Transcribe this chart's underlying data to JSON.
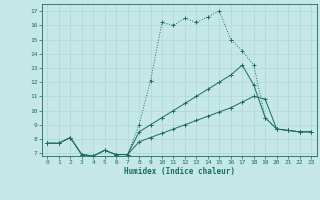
{
  "xlabel": "Humidex (Indice chaleur)",
  "xlim": [
    -0.5,
    23.5
  ],
  "ylim": [
    6.8,
    17.5
  ],
  "xticks": [
    0,
    1,
    2,
    3,
    4,
    5,
    6,
    7,
    8,
    9,
    10,
    11,
    12,
    13,
    14,
    15,
    16,
    17,
    18,
    19,
    20,
    21,
    22,
    23
  ],
  "yticks": [
    7,
    8,
    9,
    10,
    11,
    12,
    13,
    14,
    15,
    16,
    17
  ],
  "bg_color": "#c5e8e6",
  "line_color": "#1a6b63",
  "grid_color": "#b0d8d5",
  "line1_x": [
    0,
    1,
    2,
    3,
    4,
    5,
    6,
    7,
    8,
    9,
    10,
    11,
    12,
    13,
    14,
    15,
    16,
    17,
    18,
    19,
    20,
    21,
    22,
    23
  ],
  "line1_y": [
    7.7,
    7.7,
    8.1,
    6.9,
    6.8,
    7.2,
    6.9,
    6.9,
    9.0,
    12.1,
    16.2,
    16.0,
    16.5,
    16.2,
    16.6,
    17.0,
    15.0,
    14.2,
    13.2,
    9.5,
    8.7,
    8.6,
    8.5,
    8.5
  ],
  "line2_x": [
    0,
    1,
    2,
    3,
    4,
    5,
    6,
    7,
    8,
    9,
    10,
    11,
    12,
    13,
    14,
    15,
    16,
    17,
    18,
    19,
    20,
    21,
    22,
    23
  ],
  "line2_y": [
    7.7,
    7.7,
    8.1,
    6.9,
    6.8,
    7.2,
    6.9,
    6.9,
    8.5,
    9.0,
    9.5,
    10.0,
    10.5,
    11.0,
    11.5,
    12.0,
    12.5,
    13.2,
    11.8,
    9.5,
    8.7,
    8.6,
    8.5,
    8.5
  ],
  "line3_x": [
    0,
    1,
    2,
    3,
    4,
    5,
    6,
    7,
    8,
    9,
    10,
    11,
    12,
    13,
    14,
    15,
    16,
    17,
    18,
    19,
    20,
    21,
    22,
    23
  ],
  "line3_y": [
    7.7,
    7.7,
    8.1,
    6.9,
    6.8,
    7.2,
    6.9,
    6.9,
    7.8,
    8.1,
    8.4,
    8.7,
    9.0,
    9.3,
    9.6,
    9.9,
    10.2,
    10.6,
    11.0,
    10.8,
    8.7,
    8.6,
    8.5,
    8.5
  ]
}
